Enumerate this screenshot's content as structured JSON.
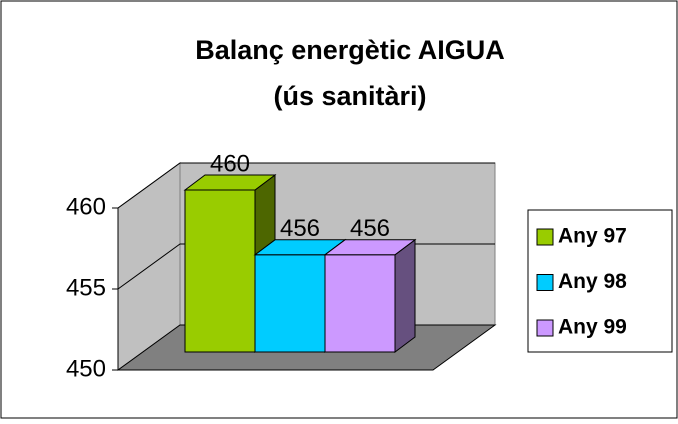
{
  "chart_data": {
    "type": "bar3d",
    "title": [
      "Balanç energètic AIGUA",
      "(ús sanitàri)"
    ],
    "series": [
      {
        "name": "Any 97",
        "color": "#99cc00",
        "side": "#4d6600",
        "values": [
          460
        ]
      },
      {
        "name": "Any 98",
        "color": "#00ccff",
        "side": "#00809f",
        "values": [
          456
        ]
      },
      {
        "name": "Any 99",
        "color": "#cc99ff",
        "side": "#66507f",
        "values": [
          456
        ]
      }
    ],
    "ylim": [
      450,
      460
    ],
    "yticks": [
      450,
      455,
      460
    ],
    "grid": true,
    "legend": "right"
  }
}
